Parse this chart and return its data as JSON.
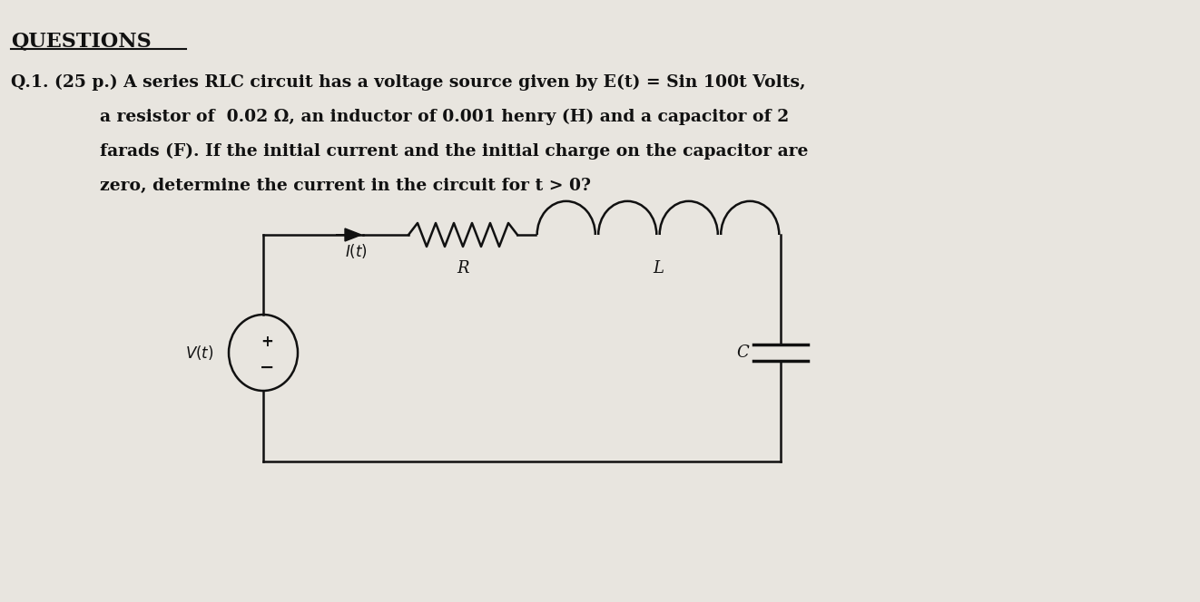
{
  "bg_color": "#e8e5df",
  "heading": "QUESTIONS",
  "question_label": "Q.1.",
  "question_points": "(25 p.)",
  "question_text_line1": "A series RLC circuit has a voltage source given by E(t) = Sin 100t Volts,",
  "question_text_line2": "a resistor of  0.02 Ω, an inductor of 0.001 henry (H) and a capacitor of 2",
  "question_text_line3": "farads (F). If the initial current and the initial charge on the capacitor are",
  "question_text_line4": "zero, determine the current in the circuit for t > 0?",
  "line_color": "#111111",
  "text_color": "#111111"
}
